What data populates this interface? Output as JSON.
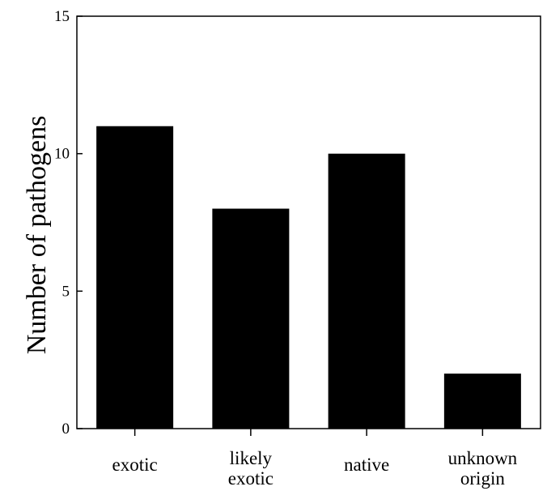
{
  "chart_data": {
    "type": "bar",
    "title": "",
    "xlabel": "",
    "ylabel": "Number of pathogens",
    "categories": [
      "exotic",
      "likely exotic",
      "native",
      "unknown origin"
    ],
    "category_lines": [
      [
        "exotic"
      ],
      [
        "likely",
        "exotic"
      ],
      [
        "native"
      ],
      [
        "unknown",
        "origin"
      ]
    ],
    "values": [
      11,
      8,
      10,
      2
    ],
    "ylim": [
      0,
      15
    ],
    "yticks": [
      0,
      5,
      10,
      15
    ],
    "grid": false,
    "legend": "none",
    "bar_color": "#000000"
  }
}
